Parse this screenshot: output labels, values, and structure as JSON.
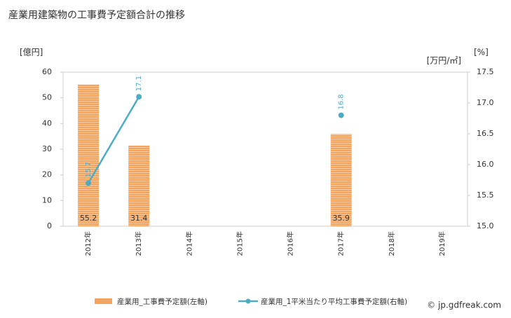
{
  "chart_data": {
    "type": "bar-line",
    "title": "産業用建築物の工事費予定額合計の推移",
    "y_label": "[億円]",
    "y2_label": "[%]",
    "y2_unit_label": "[万円/㎡]",
    "categories": [
      "2012年",
      "2013年",
      "2014年",
      "2015年",
      "2016年",
      "2017年",
      "2018年",
      "2019年"
    ],
    "series": [
      {
        "name": "産業用_工事費予定額(左軸)",
        "type": "bar",
        "color": "#f5a25d",
        "values": [
          55.2,
          31.4,
          null,
          null,
          null,
          35.9,
          null,
          null
        ]
      },
      {
        "name": "産業用_1平米当たり平均工事費予定額(右軸)",
        "type": "line",
        "axis": "y2",
        "color": "#4bacc6",
        "values": [
          15.7,
          17.1,
          null,
          null,
          null,
          16.8,
          null,
          null
        ]
      }
    ],
    "ylim": [
      0,
      60
    ],
    "yticks": [
      0,
      10,
      20,
      30,
      40,
      50,
      60
    ],
    "y2lim": [
      15,
      17.5
    ],
    "y2ticks": [
      {
        "value": 15,
        "label": "15.0"
      },
      15.5,
      {
        "value": 16,
        "label": "16.0"
      },
      16.5,
      {
        "value": 17,
        "label": "17.0"
      },
      17.5
    ],
    "grid": false,
    "watermark": "© jp.gdfreak.com"
  }
}
